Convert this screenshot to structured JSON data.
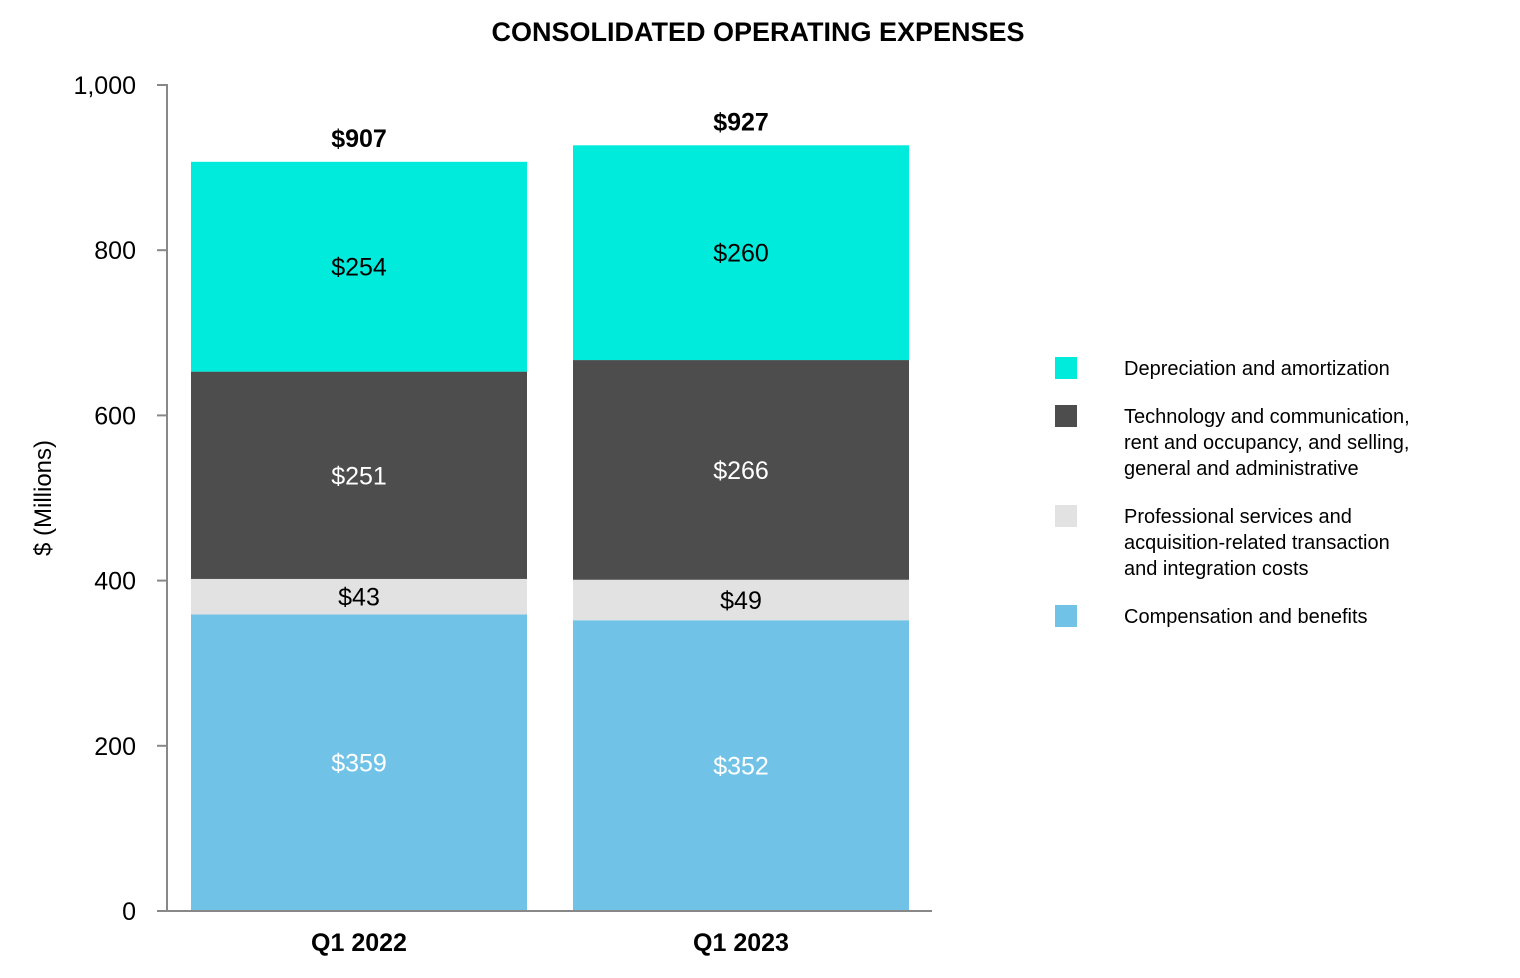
{
  "chart_data": {
    "type": "bar",
    "stacked": true,
    "title": "CONSOLIDATED OPERATING EXPENSES",
    "xlabel": "",
    "ylabel": "$ (Millions)",
    "ylim": [
      0,
      1000
    ],
    "yticks": [
      0,
      200,
      400,
      600,
      800,
      1000
    ],
    "ytick_labels": [
      "0",
      "200",
      "400",
      "600",
      "800",
      "1,000"
    ],
    "categories": [
      "Q1 2022",
      "Q1 2023"
    ],
    "totals": [
      907,
      927
    ],
    "total_labels": [
      "$907",
      "$927"
    ],
    "series": [
      {
        "name": "Compensation and benefits",
        "legend_lines": [
          "Compensation and benefits"
        ],
        "color": "#70C3E7",
        "label_color": "#ffffff",
        "values": [
          359,
          352
        ],
        "labels": [
          "$359",
          "$352"
        ]
      },
      {
        "name": "Professional services and acquisition-related transaction and integration costs",
        "legend_lines": [
          "Professional services and",
          " acquisition-related  transaction",
          " and integration costs"
        ],
        "color": "#E2E2E2",
        "label_color": "#000000",
        "values": [
          43,
          49
        ],
        "labels": [
          "$43",
          "$49"
        ]
      },
      {
        "name": "Technology and communication, rent and occupancy, and selling, general and administrative",
        "legend_lines": [
          "Technology and communication,",
          "rent and occupancy, and selling,",
          "general and administrative"
        ],
        "color": "#4D4D4D",
        "label_color": "#ffffff",
        "values": [
          251,
          266
        ],
        "labels": [
          "$251",
          "$266"
        ]
      },
      {
        "name": "Depreciation and amortization",
        "legend_lines": [
          "Depreciation and amortization"
        ],
        "color": "#00EBDC",
        "label_color": "#000000",
        "values": [
          254,
          260
        ],
        "labels": [
          "$254",
          "$260"
        ]
      }
    ],
    "legend_order": [
      3,
      2,
      1,
      0
    ],
    "legend_position": "right",
    "grid": false
  }
}
